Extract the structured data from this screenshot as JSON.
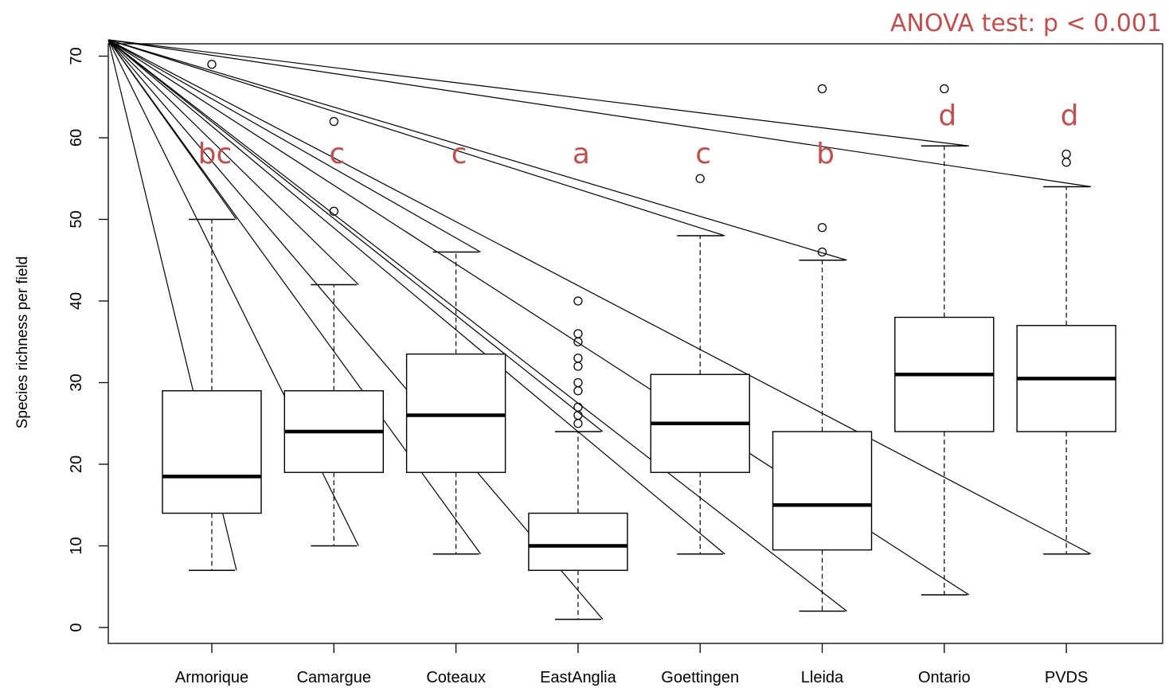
{
  "chart_data": {
    "type": "box",
    "title": "",
    "annotation": "ANOVA test: p < 0.001",
    "xlabel": "",
    "ylabel": "Species richness per field",
    "ylim": [
      -2,
      72
    ],
    "yticks": [
      0,
      10,
      20,
      30,
      40,
      50,
      60,
      70
    ],
    "categories": [
      "Armorique",
      "Camargue",
      "Coteaux",
      "EastAnglia",
      "Goettingen",
      "Lleida",
      "Ontario",
      "PVDS"
    ],
    "boxes": [
      {
        "name": "Armorique",
        "whisker_low": 7,
        "q1": 14,
        "median": 18.5,
        "q3": 29,
        "whisker_high": 50,
        "outliers": [
          69
        ],
        "letter": "bc"
      },
      {
        "name": "Camargue",
        "whisker_low": 10,
        "q1": 19,
        "median": 24,
        "q3": 29,
        "whisker_high": 42,
        "outliers": [
          51,
          62
        ],
        "letter": "c"
      },
      {
        "name": "Coteaux",
        "whisker_low": 9,
        "q1": 19,
        "median": 26,
        "q3": 33.5,
        "whisker_high": 46,
        "outliers": [],
        "letter": "c"
      },
      {
        "name": "EastAnglia",
        "whisker_low": 1,
        "q1": 7,
        "median": 10,
        "q3": 14,
        "whisker_high": 24,
        "outliers": [
          25,
          26,
          27,
          29,
          30,
          32,
          33,
          35,
          36,
          40
        ],
        "letter": "a"
      },
      {
        "name": "Goettingen",
        "whisker_low": 9,
        "q1": 19,
        "median": 25,
        "q3": 31,
        "whisker_high": 48,
        "outliers": [
          55
        ],
        "letter": "c"
      },
      {
        "name": "Lleida",
        "whisker_low": 2,
        "q1": 9.5,
        "median": 15,
        "q3": 24,
        "whisker_high": 45,
        "outliers": [
          46,
          49,
          66
        ],
        "letter": "b"
      },
      {
        "name": "Ontario",
        "whisker_low": 4,
        "q1": 24,
        "median": 31,
        "q3": 38,
        "whisker_high": 59,
        "outliers": [
          66
        ],
        "letter": "d"
      },
      {
        "name": "PVDS",
        "whisker_low": 9,
        "q1": 24,
        "median": 30.5,
        "q3": 37,
        "whisker_high": 54,
        "outliers": [
          57,
          58
        ],
        "letter": "d"
      }
    ],
    "grid": false,
    "letter_color": "#c0504d",
    "box_color": "#000000"
  }
}
